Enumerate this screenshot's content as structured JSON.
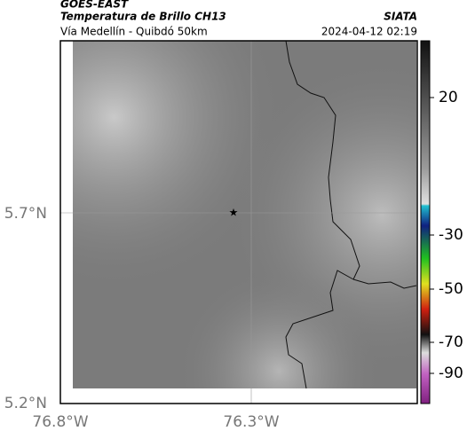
{
  "header": {
    "source": "GOES-EAST",
    "title": "Temperatura de Brillo CH13",
    "subtitle": "Vía Medellín - Quibdó 50km",
    "agency": "SIATA",
    "datetime": "2024-04-12 02:19"
  },
  "axes": {
    "lat_labels": [
      "5.7°N",
      "5.2°N"
    ],
    "lon_labels": [
      "76.8°W",
      "76.3°W"
    ]
  },
  "colorbar": {
    "tick_labels": [
      "20",
      "-30",
      "-50",
      "-70",
      "-90"
    ]
  }
}
